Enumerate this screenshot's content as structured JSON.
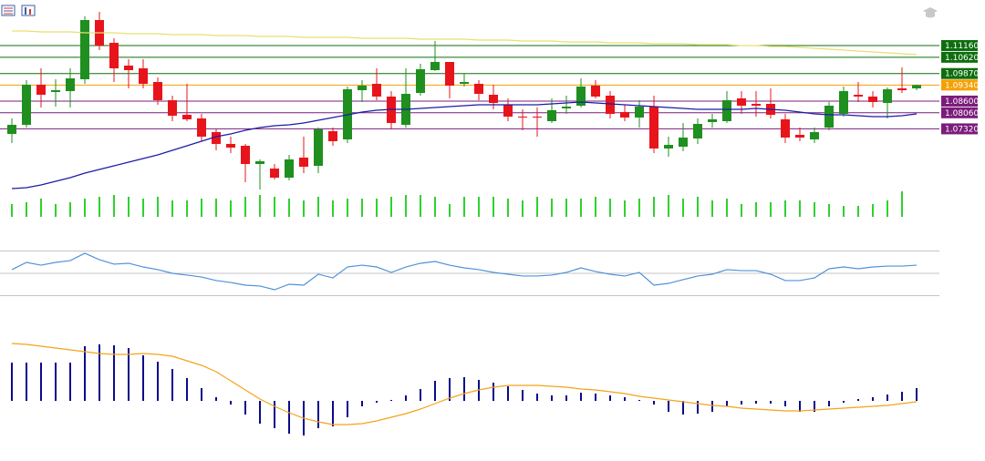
{
  "chart_data": [
    {
      "type": "candlestick",
      "ylim": [
        1.0444,
        1.1326
      ],
      "up_color": "#1f8f1f",
      "down_color": "#e8141b",
      "open": [
        1.07086,
        1.07506,
        1.09354,
        1.09018,
        1.0906,
        1.09606,
        1.12336,
        1.11286,
        1.10236,
        1.1011,
        1.0948,
        1.0864,
        1.07968,
        1.078,
        1.0717,
        1.06624,
        1.0654,
        1.057,
        1.0549,
        1.0507,
        1.05994,
        1.05616,
        1.07212,
        1.06834,
        1.09102,
        1.09396,
        1.08808,
        1.07506,
        1.08976,
        1.10026,
        1.10404,
        1.09396,
        1.09396,
        1.08892,
        1.0843,
        1.07884,
        1.07884,
        1.07674,
        1.08262,
        1.08388,
        1.09312,
        1.0885,
        1.08094,
        1.07842,
        1.08346,
        1.06414,
        1.06498,
        1.06876,
        1.07632,
        1.07674,
        1.08724,
        1.08472,
        1.08472,
        1.07758,
        1.07044,
        1.06834,
        1.0738,
        1.0801,
        1.08892,
        1.08808,
        1.08514,
        1.09186,
        1.09186
      ],
      "high": [
        1.078,
        1.09564,
        1.1011,
        1.09606,
        1.1011,
        1.12504,
        1.12714,
        1.11496,
        1.1053,
        1.1053,
        1.0969,
        1.0885,
        1.09396,
        1.0801,
        1.07296,
        1.0696,
        1.06624,
        1.0591,
        1.057,
        1.0612,
        1.0696,
        1.0738,
        1.0738,
        1.0927,
        1.09564,
        1.1011,
        1.0906,
        1.1011,
        1.1032,
        1.1137,
        1.10404,
        1.099,
        1.09564,
        1.09354,
        1.08724,
        1.0822,
        1.08304,
        1.08724,
        1.0885,
        1.09648,
        1.09564,
        1.0906,
        1.0843,
        1.0864,
        1.0885,
        1.0696,
        1.0759,
        1.078,
        1.0801,
        1.0906,
        1.0906,
        1.0906,
        1.09186,
        1.0801,
        1.0738,
        1.0738,
        1.08556,
        1.0927,
        1.0948,
        1.0906,
        1.09228,
        1.10152,
        1.0936
      ],
      "low": [
        1.06666,
        1.0738,
        1.08304,
        1.08346,
        1.08304,
        1.09396,
        1.1095,
        1.0948,
        1.09186,
        1.09186,
        1.0843,
        1.07674,
        1.07674,
        1.0675,
        1.0633,
        1.06204,
        1.0486,
        1.04524,
        1.04986,
        1.04944,
        1.0528,
        1.0528,
        1.0654,
        1.06666,
        1.08556,
        1.0864,
        1.07296,
        1.0738,
        1.0885,
        1.09984,
        1.08724,
        1.0927,
        1.0864,
        1.0822,
        1.07674,
        1.07254,
        1.0696,
        1.0759,
        1.0801,
        1.08304,
        1.08724,
        1.078,
        1.07674,
        1.0738,
        1.06204,
        1.06036,
        1.06288,
        1.06624,
        1.0738,
        1.0759,
        1.0801,
        1.07884,
        1.078,
        1.06666,
        1.0675,
        1.06666,
        1.07254,
        1.07884,
        1.08556,
        1.08304,
        1.078,
        1.08976,
        1.09102
      ],
      "close": [
        1.07506,
        1.09354,
        1.08892,
        1.09102,
        1.09648,
        1.12336,
        1.1116,
        1.1011,
        1.10026,
        1.09396,
        1.0864,
        1.07926,
        1.07758,
        1.0696,
        1.06624,
        1.06456,
        1.057,
        1.05826,
        1.0507,
        1.0591,
        1.05574,
        1.07296,
        1.0675,
        1.09144,
        1.09312,
        1.08808,
        1.0759,
        1.08934,
        1.10068,
        1.10404,
        1.09312,
        1.0948,
        1.08934,
        1.08514,
        1.07884,
        1.07842,
        1.07842,
        1.08178,
        1.08346,
        1.0927,
        1.08808,
        1.0801,
        1.07842,
        1.08346,
        1.06414,
        1.06582,
        1.06918,
        1.07548,
        1.07758,
        1.0864,
        1.08388,
        1.08388,
        1.07968,
        1.06918,
        1.06918,
        1.0717,
        1.08388,
        1.0906,
        1.08808,
        1.08556,
        1.09144,
        1.09102,
        1.0934
      ],
      "series": [
        {
          "color": "#e8e070",
          "values": [
            1.11832,
            1.11832,
            1.1179,
            1.1179,
            1.1179,
            1.11748,
            1.11748,
            1.11748,
            1.11706,
            1.11706,
            1.11706,
            1.11664,
            1.11664,
            1.11664,
            1.11622,
            1.11622,
            1.11622,
            1.1158,
            1.1158,
            1.1158,
            1.11538,
            1.11538,
            1.11538,
            1.11538,
            1.11496,
            1.11496,
            1.11496,
            1.11496,
            1.11454,
            1.11454,
            1.11454,
            1.11454,
            1.11412,
            1.11412,
            1.11412,
            1.1137,
            1.1137,
            1.1137,
            1.11328,
            1.11328,
            1.11328,
            1.11286,
            1.11286,
            1.11286,
            1.11244,
            1.11244,
            1.11244,
            1.11202,
            1.11202,
            1.11202,
            1.1116,
            1.1116,
            1.11118,
            1.11118,
            1.11076,
            1.11034,
            1.10992,
            1.1095,
            1.10908,
            1.10866,
            1.10824,
            1.10782,
            1.1074
          ]
        },
        {
          "color": "#1c1ca8",
          "values": [
            1.04566,
            1.04608,
            1.04734,
            1.04902,
            1.0507,
            1.0528,
            1.05448,
            1.05616,
            1.05784,
            1.05952,
            1.0612,
            1.0633,
            1.0654,
            1.0675,
            1.0696,
            1.07086,
            1.07254,
            1.0738,
            1.07464,
            1.07506,
            1.0759,
            1.07716,
            1.07842,
            1.07968,
            1.08094,
            1.08178,
            1.0822,
            1.0822,
            1.08262,
            1.08304,
            1.08346,
            1.08388,
            1.0843,
            1.0843,
            1.0843,
            1.0843,
            1.0843,
            1.08472,
            1.08514,
            1.08556,
            1.08514,
            1.08472,
            1.0843,
            1.08388,
            1.08346,
            1.08304,
            1.08262,
            1.0822,
            1.0822,
            1.0822,
            1.0822,
            1.08262,
            1.0822,
            1.08178,
            1.08094,
            1.0801,
            1.07968,
            1.07968,
            1.07926,
            1.07884,
            1.07884,
            1.07926,
            1.0801
          ]
        }
      ],
      "levels": [
        {
          "value": 1.1116,
          "label": "1.11160",
          "color": "#0e6e0e"
        },
        {
          "value": 1.1062,
          "label": "1.10620",
          "color": "#0e6e0e"
        },
        {
          "value": 1.0987,
          "label": "1.09870",
          "color": "#0e6e0e"
        },
        {
          "value": 1.0934,
          "label": "1.09340",
          "color": "#f5a000"
        },
        {
          "value": 1.086,
          "label": "1.08600",
          "color": "#7b1c7b"
        },
        {
          "value": 1.0806,
          "label": "1.08060",
          "color": "#7b1c7b"
        },
        {
          "value": 1.0732,
          "label": "1.07320",
          "color": "#7b1c7b"
        }
      ]
    },
    {
      "type": "bar",
      "color": "#2fd12f",
      "ylim": [
        0,
        30
      ],
      "values": [
        14,
        16,
        20,
        14,
        16,
        20,
        22,
        24,
        22,
        20,
        22,
        18,
        18,
        20,
        20,
        18,
        22,
        24,
        22,
        20,
        18,
        22,
        18,
        20,
        20,
        20,
        22,
        24,
        24,
        22,
        14,
        22,
        22,
        22,
        20,
        18,
        22,
        20,
        20,
        20,
        22,
        20,
        18,
        20,
        22,
        24,
        20,
        22,
        18,
        20,
        14,
        16,
        16,
        18,
        18,
        16,
        14,
        12,
        12,
        14,
        18,
        28,
        null
      ]
    },
    {
      "type": "line",
      "ylim": [
        20,
        80
      ],
      "levels": [
        {
          "value": 70,
          "color": "#c4c4c4"
        },
        {
          "value": 50,
          "color": "#c4c4c4"
        },
        {
          "value": 30,
          "color": "#c4c4c4"
        }
      ],
      "series": [
        {
          "color": "#4f93d8",
          "values": [
            53.3,
            59.8,
            57.3,
            59.8,
            61.4,
            68,
            62.2,
            58.2,
            59,
            55.7,
            53.3,
            50,
            48.4,
            46.7,
            43.5,
            41.8,
            39.4,
            38.6,
            35.3,
            40.2,
            39.4,
            49.2,
            45.9,
            55.7,
            57.3,
            55.7,
            50.8,
            55.7,
            59,
            60.6,
            57.3,
            54.9,
            53.3,
            50.8,
            49.2,
            47.6,
            47.6,
            48.4,
            50.8,
            54.9,
            51.6,
            49.2,
            47.6,
            50.8,
            39.4,
            41,
            44.3,
            47.6,
            49.2,
            53.3,
            52.4,
            52.4,
            49.2,
            43.5,
            43.5,
            45.9,
            54.1,
            55.7,
            54.1,
            55.7,
            56.5,
            56.5,
            57.3
          ]
        }
      ]
    },
    {
      "type": "bar",
      "color": "#0a0a8c",
      "ylim": [
        -0.0066,
        0.01
      ],
      "values": [
        0.0042,
        0.0042,
        0.0042,
        0.0042,
        0.0042,
        0.006,
        0.0062,
        0.0061,
        0.0058,
        0.005,
        0.0043,
        0.0035,
        0.0025,
        0.0014,
        0.0004,
        -0.0004,
        -0.0015,
        -0.0025,
        -0.003,
        -0.0036,
        -0.0038,
        -0.003,
        -0.0028,
        -0.0018,
        -0.0006,
        -0.0002,
        0.0001,
        0.0006,
        0.0013,
        0.0022,
        0.0025,
        0.0026,
        0.0023,
        0.002,
        0.0016,
        0.0012,
        0.0008,
        0.0006,
        0.0006,
        0.0009,
        0.0008,
        0.0006,
        0.0004,
        0.0001,
        -0.0004,
        -0.0012,
        -0.0015,
        -0.0014,
        -0.0012,
        -0.0006,
        -0.0004,
        -0.0003,
        -0.0003,
        -0.0006,
        -0.0012,
        -0.0012,
        -0.0006,
        -0.0002,
        0.0002,
        0.0004,
        0.0007,
        0.001,
        0.0014
      ],
      "series": [
        {
          "color": "#f5a31a",
          "values": [
            0.0063,
            0.0062,
            0.006,
            0.0058,
            0.0056,
            0.0054,
            0.0052,
            0.0051,
            0.0051,
            0.0052,
            0.0051,
            0.0049,
            0.0044,
            0.0039,
            0.0032,
            0.0022,
            0.0012,
            0.0002,
            -0.0006,
            -0.0013,
            -0.0019,
            -0.0023,
            -0.0026,
            -0.0026,
            -0.0025,
            -0.0022,
            -0.0018,
            -0.0014,
            -0.0009,
            -0.0003,
            0.0003,
            0.0008,
            0.0012,
            0.0015,
            0.0017,
            0.0017,
            0.0017,
            0.0016,
            0.0015,
            0.0013,
            0.0012,
            0.001,
            0.0008,
            0.0005,
            0.0003,
            0.0001,
            -0.0001,
            -0.0003,
            -0.0005,
            -0.0006,
            -0.0008,
            -0.0009,
            -0.001,
            -0.0011,
            -0.0011,
            -0.001,
            -0.0009,
            -0.0008,
            -0.0007,
            -0.0006,
            -0.0005,
            -0.0003,
            -0.0001
          ]
        }
      ]
    }
  ]
}
